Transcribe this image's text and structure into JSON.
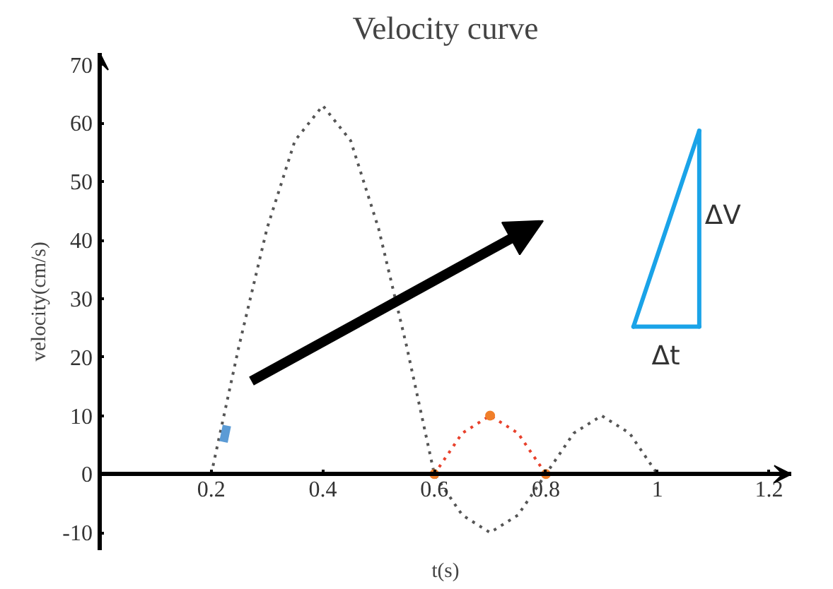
{
  "chart_data": {
    "type": "line",
    "title": "Velocity curve",
    "xlabel": "t(s)",
    "ylabel": "velocity(cm/s)",
    "xlim": [
      0,
      1.24
    ],
    "ylim": [
      -13,
      72
    ],
    "xticks": [
      0.2,
      0.4,
      0.6,
      0.8,
      1,
      1.2
    ],
    "yticks": [
      -10,
      0,
      10,
      20,
      30,
      40,
      50,
      60,
      70
    ],
    "grid": false,
    "line_style": "dotted",
    "marker": "none",
    "annotations": [
      "ΔV",
      "Δt"
    ],
    "series": [
      {
        "color": "#555555",
        "x": [
          0.2,
          0.25,
          0.3,
          0.35,
          0.4,
          0.45,
          0.5,
          0.55,
          0.6,
          0.65,
          0.7,
          0.75,
          0.8,
          0.85,
          0.9,
          0.95,
          1.0
        ],
        "values": [
          0,
          22,
          42,
          57,
          63,
          57,
          42,
          22,
          0,
          -7,
          -10,
          -7,
          0,
          7,
          10,
          7,
          0
        ]
      },
      {
        "color": "#e8412c",
        "x": [
          0.6,
          0.65,
          0.7,
          0.75,
          0.8
        ],
        "values": [
          0,
          7,
          10,
          7,
          0
        ]
      },
      {
        "type": "scatter",
        "marker": "circle",
        "color": "#f07f2a",
        "x": [
          0.6,
          0.7,
          0.8
        ],
        "values": [
          0,
          10,
          0
        ]
      },
      {
        "color": "#5b9bd5",
        "line_style": "solid",
        "x": [
          0.222,
          0.228
        ],
        "values": [
          5.5,
          8.3
        ]
      }
    ]
  }
}
